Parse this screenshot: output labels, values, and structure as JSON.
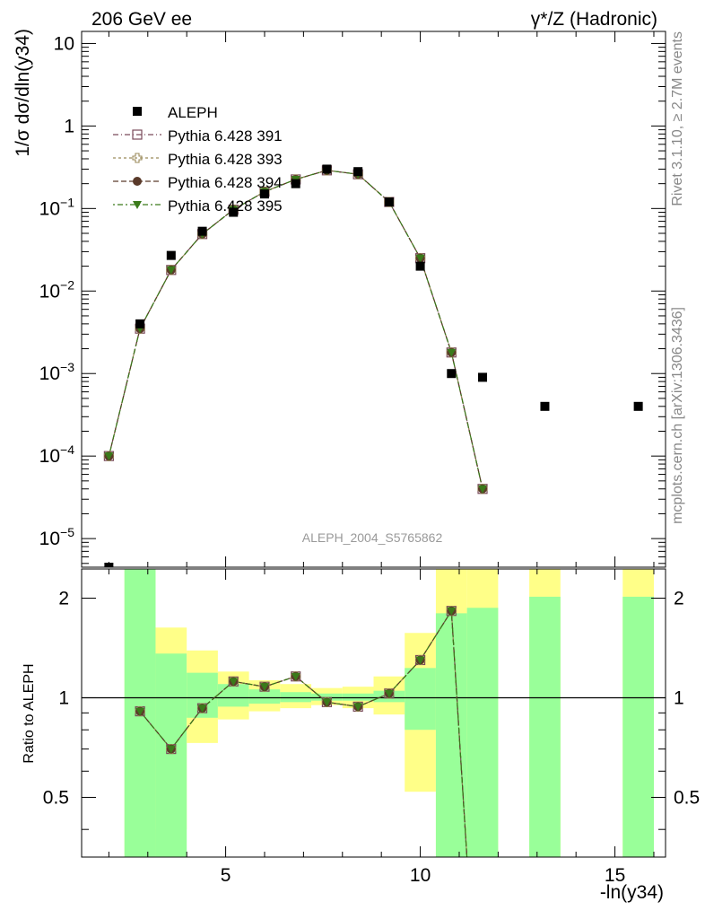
{
  "header": {
    "left": "206 GeV ee",
    "right": "γ*/Z (Hadronic)"
  },
  "side_labels": {
    "rivet": "Rivet 3.1.10, ≥ 2.7M events",
    "mcplots": "mcplots.cern.ch [arXiv:1306.3436]"
  },
  "watermark": "ALEPH_2004_S5765862",
  "colors": {
    "data": "#000000",
    "p391": "#7a4a5a",
    "p393": "#9a8a5a",
    "p394": "#5a3a2a",
    "p395": "#3a7a1a",
    "band_inner": "#99ff99",
    "band_outer": "#ffff88"
  },
  "chart_data": [
    {
      "type": "scatter",
      "panel": "main",
      "ylabel": "1/σ  dσ/dln(y34)",
      "yscale": "log",
      "ylim": [
        4.5e-06,
        14
      ],
      "xlim": [
        1.3,
        16.3
      ],
      "y_ticks": [
        {
          "v": 1e-05,
          "base": "10",
          "exp": "−5"
        },
        {
          "v": 0.0001,
          "base": "10",
          "exp": "−4"
        },
        {
          "v": 0.001,
          "base": "10",
          "exp": "−3"
        },
        {
          "v": 0.01,
          "base": "10",
          "exp": "−2"
        },
        {
          "v": 0.1,
          "base": "10",
          "exp": "−1"
        },
        {
          "v": 1,
          "base": "1",
          "exp": ""
        },
        {
          "v": 10,
          "base": "10",
          "exp": ""
        }
      ],
      "legend": {
        "placement": "top-left",
        "entries": [
          "ALEPH",
          "Pythia 6.428 391",
          "Pythia 6.428 393",
          "Pythia 6.428 394",
          "Pythia 6.428 395"
        ]
      },
      "data_points": {
        "name": "ALEPH",
        "x": [
          2.0,
          2.8,
          3.6,
          4.4,
          5.2,
          6.0,
          6.8,
          7.6,
          8.4,
          9.2,
          10.0,
          10.8,
          11.6,
          13.2,
          15.6
        ],
        "y": [
          4.5e-06,
          0.004,
          0.027,
          0.053,
          0.09,
          0.15,
          0.2,
          0.3,
          0.28,
          0.12,
          0.02,
          0.001,
          0.0009,
          0.0004,
          0.0004
        ]
      },
      "mc_x": [
        2.0,
        2.8,
        3.6,
        4.4,
        5.2,
        6.0,
        6.8,
        7.6,
        8.4,
        9.2,
        10.0,
        10.8,
        11.6
      ],
      "mc_y": [
        0.0001,
        0.0035,
        0.018,
        0.049,
        0.097,
        0.16,
        0.225,
        0.29,
        0.26,
        0.12,
        0.025,
        0.0018,
        4e-05
      ]
    },
    {
      "type": "scatter",
      "panel": "ratio",
      "ylabel": "Ratio to ALEPH",
      "yscale": "log",
      "ylim": [
        0.33,
        2.45
      ],
      "xlim": [
        1.3,
        16.3
      ],
      "y_ticks": [
        0.5,
        1,
        2
      ],
      "y_tick_labels": [
        "0.5",
        "1",
        "2"
      ],
      "x_ticks": [
        5,
        10,
        15
      ],
      "x_tick_labels": [
        "5",
        "10",
        "15"
      ],
      "xlabel": "-ln(y34)",
      "bands": [
        {
          "x0": 2.4,
          "x1": 3.2,
          "inner": [
            0.0,
            9
          ],
          "outer": [
            0.0,
            9
          ]
        },
        {
          "x0": 3.2,
          "x1": 4.0,
          "inner": [
            0.33,
            1.36
          ],
          "outer": [
            0.4,
            1.63
          ]
        },
        {
          "x0": 4.0,
          "x1": 4.8,
          "inner": [
            0.87,
            1.19
          ],
          "outer": [
            0.73,
            1.39
          ]
        },
        {
          "x0": 4.8,
          "x1": 5.6,
          "inner": [
            0.94,
            1.1
          ],
          "outer": [
            0.86,
            1.2
          ]
        },
        {
          "x0": 5.6,
          "x1": 6.4,
          "inner": [
            0.96,
            1.06
          ],
          "outer": [
            0.91,
            1.13
          ]
        },
        {
          "x0": 6.4,
          "x1": 7.2,
          "inner": [
            0.97,
            1.04
          ],
          "outer": [
            0.93,
            1.1
          ]
        },
        {
          "x0": 7.2,
          "x1": 8.0,
          "inner": [
            0.98,
            1.03
          ],
          "outer": [
            0.95,
            1.07
          ]
        },
        {
          "x0": 8.0,
          "x1": 8.8,
          "inner": [
            0.98,
            1.03
          ],
          "outer": [
            0.93,
            1.08
          ]
        },
        {
          "x0": 8.8,
          "x1": 9.6,
          "inner": [
            0.97,
            1.05
          ],
          "outer": [
            0.89,
            1.16
          ]
        },
        {
          "x0": 9.6,
          "x1": 10.4,
          "inner": [
            0.8,
            1.23
          ],
          "outer": [
            0.52,
            1.57
          ]
        },
        {
          "x0": 10.4,
          "x1": 11.2,
          "inner": [
            0.0,
            1.8
          ],
          "outer": [
            0.0,
            9
          ]
        },
        {
          "x0": 11.2,
          "x1": 12.0,
          "inner": [
            0.0,
            1.87
          ],
          "outer": [
            0.0,
            9
          ]
        },
        {
          "x0": 12.8,
          "x1": 13.6,
          "inner": [
            0.0,
            2.02
          ],
          "outer": [
            0.0,
            9
          ]
        },
        {
          "x0": 15.2,
          "x1": 16.0,
          "inner": [
            0.0,
            2.02
          ],
          "outer": [
            0.0,
            9
          ]
        }
      ],
      "ratio_x": [
        2.8,
        3.6,
        4.4,
        5.2,
        6.0,
        6.8,
        7.6,
        8.4,
        9.2,
        10.0,
        10.8,
        11.2
      ],
      "ratio_y": [
        0.91,
        0.7,
        0.93,
        1.12,
        1.08,
        1.16,
        0.97,
        0.94,
        1.03,
        1.3,
        1.83,
        0.2
      ]
    }
  ]
}
